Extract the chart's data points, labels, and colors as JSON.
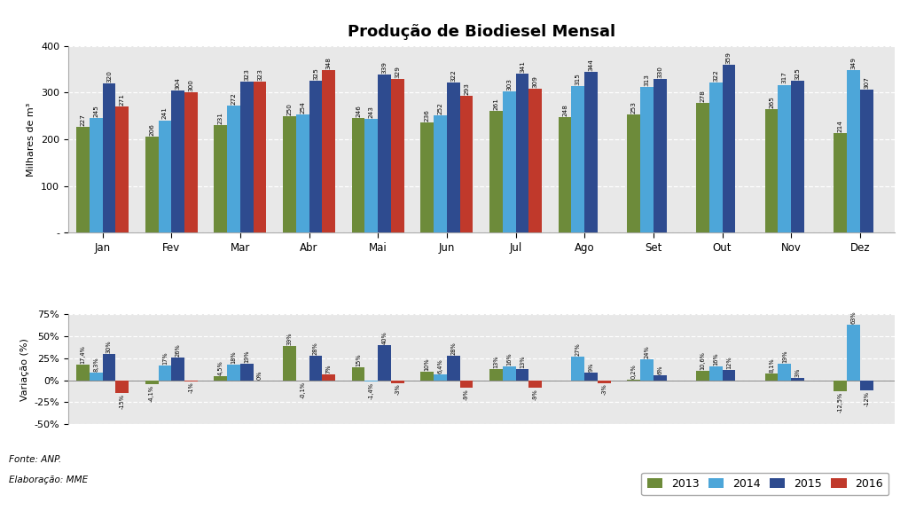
{
  "title": "Produção de Biodiesel Mensal",
  "months": [
    "Jan",
    "Fev",
    "Mar",
    "Abr",
    "Mai",
    "Jun",
    "Jul",
    "Ago",
    "Set",
    "Out",
    "Nov",
    "Dez"
  ],
  "bar_data": {
    "2013": [
      227,
      206,
      231,
      250,
      246,
      236,
      261,
      248,
      253,
      278,
      265,
      214
    ],
    "2014": [
      245,
      241,
      272,
      254,
      243,
      252,
      303,
      315,
      313,
      322,
      317,
      349
    ],
    "2015": [
      320,
      304,
      323,
      325,
      339,
      322,
      341,
      344,
      330,
      359,
      325,
      307
    ],
    "2016": [
      271,
      300,
      323,
      348,
      329,
      293,
      309,
      null,
      null,
      null,
      null,
      null
    ]
  },
  "var_data": {
    "2013": [
      17.4,
      -4.1,
      4.5,
      39,
      15,
      10,
      13,
      null,
      0.2,
      10.6,
      8.1,
      -12.5
    ],
    "2014": [
      8.3,
      17,
      18,
      -0.1,
      -1.4,
      6.4,
      16,
      27,
      24,
      16,
      19,
      63
    ],
    "2015": [
      30,
      26,
      19,
      28,
      40,
      28,
      13,
      9,
      6,
      12,
      3,
      -12
    ],
    "2016": [
      -15,
      -1,
      0,
      7,
      -3,
      -9,
      -9,
      -3,
      null,
      null,
      null,
      null
    ]
  },
  "var_labels": {
    "2013": [
      "17,4%",
      "-4,1%",
      "4,5%",
      "39%",
      "15%",
      "10%",
      "13%",
      "",
      "0,2%",
      "10,6%",
      "8,1%",
      "-12,5%"
    ],
    "2014": [
      "8,3%",
      "17%",
      "18%",
      "-0,1%",
      "-1,4%",
      "6,4%",
      "16%",
      "27%",
      "24%",
      "16%",
      "19%",
      "63%"
    ],
    "2015": [
      "30%",
      "26%",
      "19%",
      "28%",
      "40%",
      "28%",
      "13%",
      "9%",
      "6%",
      "12%",
      "3%",
      "-12%"
    ],
    "2016": [
      "-15%",
      "-1%",
      "0%",
      "7%",
      "-3%",
      "-9%",
      "-9%",
      "-3%",
      "",
      "",
      "",
      ""
    ]
  },
  "bar_labels": {
    "2013": [
      "227",
      "206",
      "231",
      "250",
      "246",
      "236",
      "261",
      "248",
      "253",
      "278",
      "265",
      "214"
    ],
    "2014": [
      "245",
      "241",
      "272",
      "254",
      "243",
      "252",
      "303",
      "315",
      "313",
      "322",
      "317",
      "349"
    ],
    "2015": [
      "320",
      "304",
      "323",
      "325",
      "339",
      "322",
      "341",
      "344",
      "330",
      "359",
      "325",
      "307"
    ],
    "2016": [
      "271",
      "300",
      "323",
      "348",
      "329",
      "293",
      "309",
      "",
      "",
      "",
      "",
      ""
    ]
  },
  "colors": {
    "2013": "#6d8b3a",
    "2014": "#4da6d9",
    "2015": "#2e4b8f",
    "2016": "#c0392b"
  },
  "ylabel_bar": "Milhares de m³",
  "ylabel_var": "Variação (%)",
  "ylim_bar": [
    0,
    400
  ],
  "ylim_var": [
    -50,
    75
  ],
  "yticks_bar": [
    0,
    100,
    200,
    300,
    400
  ],
  "yticks_var": [
    -50,
    -25,
    0,
    25,
    50,
    75
  ],
  "background_color": "#ffffff",
  "plot_bg": "#e8e8e8",
  "note1": "Fonte: ANP.",
  "note2": "Elaboração: MME"
}
